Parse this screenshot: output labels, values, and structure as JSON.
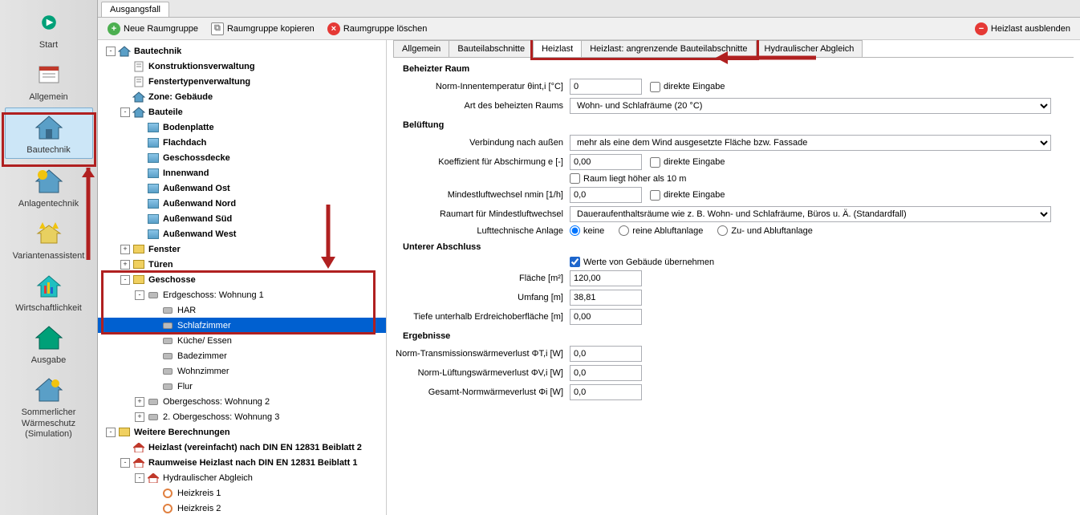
{
  "nav": {
    "items": [
      {
        "label": "Start",
        "color": "#00a078"
      },
      {
        "label": "Allgemein",
        "color": "#c0392b"
      },
      {
        "label": "Bautechnik",
        "color": "#2e86c1",
        "active": true
      },
      {
        "label": "Anlagentechnik",
        "color": "#2e86c1"
      },
      {
        "label": "Variantenassistent",
        "color": "#f1c40f"
      },
      {
        "label": "Wirtschaftlichkeit",
        "color": "#20c0c0"
      },
      {
        "label": "Ausgabe",
        "color": "#00a078"
      },
      {
        "label": "Sommerlicher Wärmeschutz (Simulation)",
        "color": "#2e86c1"
      }
    ]
  },
  "top_tab": "Ausgangsfall",
  "toolbar": {
    "new_group": "Neue Raumgruppe",
    "copy_group": "Raumgruppe kopieren",
    "delete_group": "Raumgruppe löschen",
    "hide_heat": "Heizlast ausblenden"
  },
  "tree": [
    {
      "d": 0,
      "t": "-",
      "i": "house",
      "l": "Bautechnik",
      "b": true
    },
    {
      "d": 1,
      "t": "",
      "i": "doc",
      "l": "Konstruktionsverwaltung",
      "b": true
    },
    {
      "d": 1,
      "t": "",
      "i": "doc",
      "l": "Fenstertypenverwaltung",
      "b": true
    },
    {
      "d": 1,
      "t": "",
      "i": "house",
      "l": "Zone: Gebäude",
      "b": true
    },
    {
      "d": 1,
      "t": "-",
      "i": "house",
      "l": "Bauteile",
      "b": true
    },
    {
      "d": 2,
      "t": "",
      "i": "wall",
      "l": "Bodenplatte",
      "b": true
    },
    {
      "d": 2,
      "t": "",
      "i": "wall",
      "l": "Flachdach",
      "b": true
    },
    {
      "d": 2,
      "t": "",
      "i": "wall",
      "l": "Geschossdecke",
      "b": true
    },
    {
      "d": 2,
      "t": "",
      "i": "wall",
      "l": "Innenwand",
      "b": true
    },
    {
      "d": 2,
      "t": "",
      "i": "wall",
      "l": "Außenwand Ost",
      "b": true
    },
    {
      "d": 2,
      "t": "",
      "i": "wall",
      "l": "Außenwand Nord",
      "b": true
    },
    {
      "d": 2,
      "t": "",
      "i": "wall",
      "l": "Außenwand Süd",
      "b": true
    },
    {
      "d": 2,
      "t": "",
      "i": "wall",
      "l": "Außenwand West",
      "b": true
    },
    {
      "d": 1,
      "t": "+",
      "i": "folder",
      "l": "Fenster",
      "b": true
    },
    {
      "d": 1,
      "t": "+",
      "i": "folder",
      "l": "Türen",
      "b": true
    },
    {
      "d": 1,
      "t": "-",
      "i": "folder",
      "l": "Geschosse",
      "b": true
    },
    {
      "d": 2,
      "t": "-",
      "i": "room",
      "l": "Erdgeschoss: Wohnung 1"
    },
    {
      "d": 3,
      "t": "",
      "i": "room",
      "l": "HAR"
    },
    {
      "d": 3,
      "t": "",
      "i": "room",
      "l": "Schlafzimmer",
      "sel": true
    },
    {
      "d": 3,
      "t": "",
      "i": "room",
      "l": "Küche/ Essen"
    },
    {
      "d": 3,
      "t": "",
      "i": "room",
      "l": "Badezimmer"
    },
    {
      "d": 3,
      "t": "",
      "i": "room",
      "l": "Wohnzimmer"
    },
    {
      "d": 3,
      "t": "",
      "i": "room",
      "l": "Flur"
    },
    {
      "d": 2,
      "t": "+",
      "i": "room",
      "l": "Obergeschoss: Wohnung 2"
    },
    {
      "d": 2,
      "t": "+",
      "i": "room",
      "l": "2. Obergeschoss: Wohnung 3"
    },
    {
      "d": 0,
      "t": "-",
      "i": "folder",
      "l": "Weitere Berechnungen",
      "b": true
    },
    {
      "d": 1,
      "t": "",
      "i": "homered",
      "l": "Heizlast (vereinfacht) nach DIN EN 12831 Beiblatt 2",
      "b": true
    },
    {
      "d": 1,
      "t": "-",
      "i": "homered",
      "l": "Raumweise Heizlast nach DIN EN 12831 Beiblatt 1",
      "b": true
    },
    {
      "d": 2,
      "t": "-",
      "i": "homered",
      "l": "Hydraulischer Abgleich"
    },
    {
      "d": 3,
      "t": "",
      "i": "ring",
      "l": "Heizkreis 1"
    },
    {
      "d": 3,
      "t": "",
      "i": "ring",
      "l": "Heizkreis 2"
    }
  ],
  "detail_tabs": [
    "Allgemein",
    "Bauteilabschnitte",
    "Heizlast",
    "Heizlast: angrenzende Bauteilabschnitte",
    "Hydraulischer Abgleich"
  ],
  "detail_tabs_active": 2,
  "sections": {
    "heated_room": "Beheizter Raum",
    "ventilation": "Belüftung",
    "lower_closure": "Unterer Abschluss",
    "results": "Ergebnisse"
  },
  "fields": {
    "norm_temp_label": "Norm-Innentemperatur θint,i [°C]",
    "norm_temp_value": "0",
    "direct_input": "direkte Eingabe",
    "room_type_label": "Art des beheizten Raums",
    "room_type_value": "Wohn- und Schlafräume (20 °C)",
    "conn_outside_label": "Verbindung nach außen",
    "conn_outside_value": "mehr als eine dem Wind ausgesetzte Fläche bzw. Fassade",
    "shield_coeff_label": "Koeffizient für Abschirmung e [-]",
    "shield_coeff_value": "0,00",
    "room_higher_label": "Raum liegt höher als 10 m",
    "min_air_label": "Mindestluftwechsel nmin [1/h]",
    "min_air_value": "0,0",
    "room_cat_label": "Raumart für Mindestluftwechsel",
    "room_cat_value": "Daueraufenthaltsräume wie z. B. Wohn- und Schlafräume, Büros u. Ä. (Standardfall)",
    "vent_sys_label": "Lufttechnische Anlage",
    "vent_none": "keine",
    "vent_exhaust": "reine Abluftanlage",
    "vent_both": "Zu- und Abluftanlage",
    "from_building": "Werte von Gebäude übernehmen",
    "area_label": "Fläche [m²]",
    "area_value": "120,00",
    "perimeter_label": "Umfang [m]",
    "perimeter_value": "38,81",
    "depth_label": "Tiefe unterhalb Erdreichoberfläche [m]",
    "depth_value": "0,00",
    "trans_loss_label": "Norm-Transmissionswärmeverlust ΦT,i [W]",
    "trans_loss_value": "0,0",
    "vent_loss_label": "Norm-Lüftungswärmeverlust ΦV,i [W]",
    "vent_loss_value": "0,0",
    "total_loss_label": "Gesamt-Normwärmeverlust Φi [W]",
    "total_loss_value": "0,0"
  },
  "colors": {
    "highlight_red": "#b02020",
    "selection_blue": "#0060d0",
    "accent_green": "#4caf50",
    "accent_red": "#e53935",
    "checkbox_blue": "#1e66cc"
  }
}
